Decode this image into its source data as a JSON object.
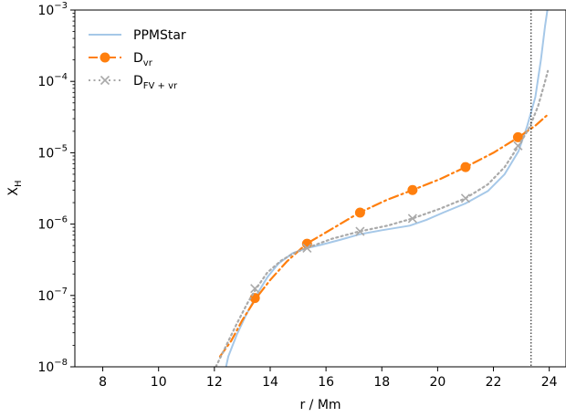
{
  "chart_data": {
    "type": "line",
    "xlabel": "r / Mm",
    "ylabel": {
      "main": "X",
      "sub": "H"
    },
    "xlim": [
      7,
      24.6
    ],
    "ylim": [
      1e-08,
      0.001
    ],
    "y_scale": "log",
    "x_ticks": [
      8,
      10,
      12,
      14,
      16,
      18,
      20,
      22,
      24
    ],
    "x_tick_labels": [
      "8",
      "10",
      "12",
      "14",
      "16",
      "18",
      "20",
      "22",
      "24"
    ],
    "y_ticks": [
      {
        "value": 1e-08,
        "base": "10",
        "exp": "−8"
      },
      {
        "value": 1e-07,
        "base": "10",
        "exp": "−7"
      },
      {
        "value": 1e-06,
        "base": "10",
        "exp": "−6"
      },
      {
        "value": 1e-05,
        "base": "10",
        "exp": "−5"
      },
      {
        "value": 0.0001,
        "base": "10",
        "exp": "−4"
      },
      {
        "value": 0.001,
        "base": "10",
        "exp": "−3"
      }
    ],
    "grid": false,
    "legend_position": "top-left",
    "vline": {
      "x": 23.35,
      "style": "dotted",
      "color": "#000000"
    },
    "series": [
      {
        "name": "PPMStar",
        "label_main": "PPMStar",
        "label_sub": "",
        "color": "#a6c8e8",
        "style": "solid",
        "marker": "none",
        "x": [
          12.25,
          12.5,
          12.8,
          13.1,
          13.5,
          13.9,
          14.3,
          14.8,
          15.3,
          15.8,
          16.5,
          17.2,
          18.0,
          19.0,
          19.6,
          20.2,
          21.0,
          21.8,
          22.4,
          22.9,
          23.2,
          23.5,
          23.7,
          23.85,
          23.95
        ],
        "y": [
          5e-09,
          1.4e-08,
          2.8e-08,
          5e-08,
          1e-07,
          1.8e-07,
          2.8e-07,
          3.9e-07,
          4.6e-07,
          5.1e-07,
          6e-07,
          7.2e-07,
          8.2e-07,
          9.5e-07,
          1.15e-06,
          1.45e-06,
          1.95e-06,
          2.9e-06,
          5e-06,
          1.05e-05,
          2.3e-05,
          6e-05,
          0.0002,
          0.0006,
          0.0011
        ]
      },
      {
        "name": "D_vr",
        "label_main": "D",
        "label_sub": "vr",
        "color": "#ff7f0e",
        "style": "dashdot",
        "marker": "circle",
        "x": [
          12.2,
          12.6,
          13.0,
          13.5,
          14.0,
          14.6,
          15.3,
          16.2,
          17.2,
          18.2,
          19.1,
          20.1,
          21.0,
          22.0,
          22.9,
          23.5,
          23.9
        ],
        "y": [
          1.4e-08,
          2.3e-08,
          4.5e-08,
          9.2e-08,
          1.65e-07,
          3e-07,
          5.3e-07,
          8.5e-07,
          1.45e-06,
          2.2e-06,
          3e-06,
          4.3e-06,
          6.3e-06,
          1e-05,
          1.65e-05,
          2.4e-05,
          3.3e-05
        ],
        "marker_x": [
          13.45,
          15.32,
          17.22,
          19.1,
          21.0,
          22.88
        ],
        "marker_y": [
          9.2e-08,
          5.3e-07,
          1.45e-06,
          3e-06,
          6.3e-06,
          1.65e-05
        ]
      },
      {
        "name": "D_FV+vr",
        "label_main": "D",
        "label_sub": "FV + vr",
        "color": "#aaaaaa",
        "style": "dotted",
        "marker": "x",
        "x": [
          12.05,
          12.4,
          12.8,
          13.2,
          13.5,
          13.9,
          14.4,
          14.9,
          15.3,
          16.2,
          17.2,
          18.2,
          19.1,
          20.1,
          21.0,
          21.8,
          22.4,
          22.9,
          23.3,
          23.6,
          23.85,
          23.95
        ],
        "y": [
          1e-08,
          1.9e-08,
          4e-08,
          8e-08,
          1.25e-07,
          2.1e-07,
          3.1e-07,
          4e-07,
          4.6e-07,
          6.2e-07,
          7.9e-07,
          9.5e-07,
          1.2e-06,
          1.65e-06,
          2.3e-06,
          3.6e-06,
          6.3e-06,
          1.25e-05,
          2.3e-05,
          4.5e-05,
          0.0001,
          0.00014
        ],
        "marker_x": [
          13.45,
          15.32,
          17.22,
          19.1,
          21.0,
          22.88
        ],
        "marker_y": [
          1.25e-07,
          4.6e-07,
          7.9e-07,
          1.2e-06,
          2.3e-06,
          1.25e-05
        ]
      }
    ]
  }
}
